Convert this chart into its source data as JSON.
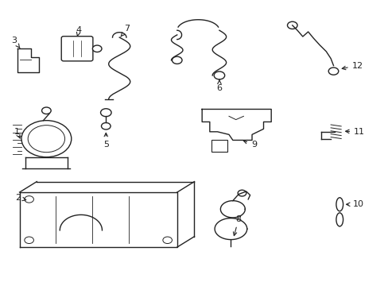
{
  "background_color": "#ffffff",
  "line_color": "#222222",
  "figsize": [
    4.89,
    3.6
  ],
  "dpi": 100
}
